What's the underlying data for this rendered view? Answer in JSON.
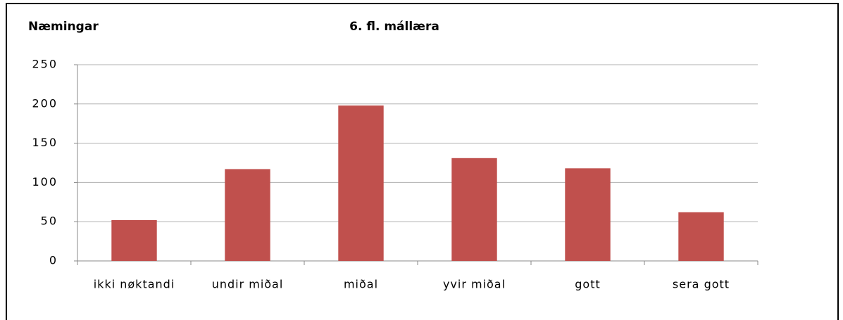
{
  "chart_data": {
    "type": "bar",
    "title": "6. fl. mállæra",
    "y_label": "Næmingar",
    "categories": [
      "ikki nøktandi",
      "undir miðal",
      "miðal",
      "yvir miðal",
      "gott",
      "sera gott"
    ],
    "values": [
      52,
      117,
      198,
      131,
      118,
      62
    ],
    "color": "#c0504d",
    "ylim": [
      0,
      250
    ],
    "yticks": [
      0,
      50,
      100,
      150,
      200,
      250
    ],
    "grid": true
  }
}
